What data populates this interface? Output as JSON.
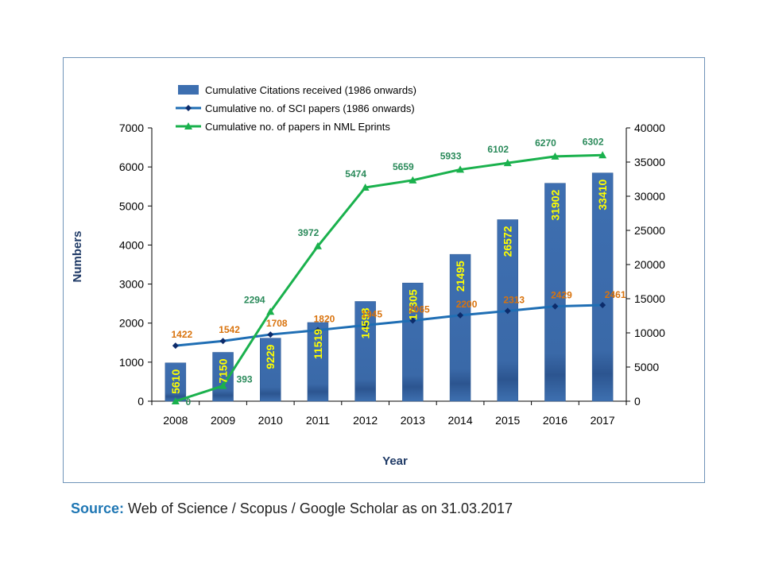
{
  "chart_data": {
    "type": "bar",
    "categories": [
      "2008",
      "2009",
      "2010",
      "2011",
      "2012",
      "2013",
      "2014",
      "2015",
      "2016",
      "2017"
    ],
    "xlabel": "Year",
    "ylabel": "Numbers",
    "ylim_left": [
      0,
      7000
    ],
    "ylim_right": [
      0,
      40000
    ],
    "yticks_left": [
      0,
      1000,
      2000,
      3000,
      4000,
      5000,
      6000,
      7000
    ],
    "yticks_right": [
      0,
      5000,
      10000,
      15000,
      20000,
      25000,
      30000,
      35000,
      40000
    ],
    "legend_position": "top-left",
    "grid": false,
    "series": [
      {
        "name": "Cumulative Citations received (1986 onwards)",
        "type": "bar",
        "axis": "right",
        "color": "#3d6fb0",
        "label_color": "#ffff00",
        "values": [
          5610,
          7150,
          9229,
          11519,
          14598,
          17305,
          21495,
          26572,
          31902,
          33410
        ]
      },
      {
        "name": "Cumulative no. of SCI papers (1986 onwards)",
        "type": "line",
        "axis": "left",
        "color": "#1f6eb4",
        "marker": "diamond",
        "marker_color": "#0d2c6b",
        "label_color": "#d9730d",
        "values": [
          1422,
          1542,
          1708,
          1820,
          1945,
          2065,
          2200,
          2313,
          2429,
          2461
        ]
      },
      {
        "name": "Cumulative no. of papers in NML Eprints",
        "type": "line",
        "axis": "left",
        "color": "#1ab14d",
        "marker": "triangle",
        "label_color": "#2a8a5a",
        "values": [
          0,
          393,
          2294,
          3972,
          5474,
          5659,
          5933,
          6102,
          6270,
          6302
        ]
      }
    ]
  },
  "source": {
    "label": "Source:",
    "text": " Web of Science / Scopus / Google Scholar as on 31.03.2017"
  }
}
